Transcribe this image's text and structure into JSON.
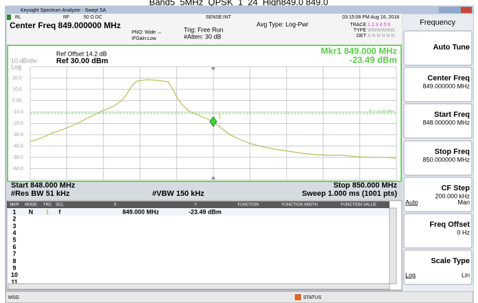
{
  "caption": "Band5_5MHz_QPSK_1_24_High849.0 849.0",
  "window_title": "Keysight Spectrum Analyzer - Swept SA",
  "status_bar": {
    "rl": "RL",
    "rf": "RF",
    "coupling": "50 Ω  DC",
    "sense": "SENSE:INT",
    "datetime": "03:15:06 PM Aug 16, 2018"
  },
  "settings": {
    "center_freq": "Center Freq 849.000000 MHz",
    "pno": "PNO: Wide ↔",
    "ifgain": "IFGain:Low",
    "trig": "Trig: Free Run",
    "atten": "#Atten: 30 dB",
    "avg_type": "Avg Type: Log-Pwr",
    "trace_label": "TRACE",
    "trace_nums": "1 2 3 4 5 6",
    "type_label": "TYPE",
    "type_value": "WWWWWW",
    "det_label": "DET",
    "det_value": "A N N N N N"
  },
  "graph": {
    "ref_offset": "Ref Offset 14.2 dB",
    "ref_level": "Ref 30.00 dBm",
    "scale": "10 dB/div",
    "scale_type": "Log",
    "marker_freq": "Mkr1 849.000 MHz",
    "marker_amp": "-23.49 dBm",
    "marker_id": "1",
    "display_line": "DL1 -13.00 dBm",
    "y_labels": [
      "20.0",
      "10.0",
      "0.00",
      "-10.0",
      "-20.0",
      "-30.0",
      "-40.0",
      "-50.0",
      "-60.0"
    ],
    "start": "Start 848.000 MHz",
    "stop": "Stop 850.000 MHz",
    "res_bw": "#Res BW 51 kHz",
    "vbw": "#VBW 150 kHz",
    "sweep": "Sweep 1.000 ms (1001 pts)"
  },
  "marker_table": {
    "headers": [
      "MKR",
      "MODE",
      "TRC",
      "SCL",
      "X",
      "Y",
      "FUNCTION",
      "FUNCTION WIDTH",
      "FUNCTION VALUE"
    ],
    "rows": [
      [
        "1",
        "N",
        "1",
        "f",
        "849.000 MHz",
        "-23.49 dBm"
      ],
      [
        "2"
      ],
      [
        "3"
      ],
      [
        "4"
      ],
      [
        "5"
      ],
      [
        "6"
      ],
      [
        "7"
      ],
      [
        "8"
      ],
      [
        "9"
      ],
      [
        "10"
      ],
      [
        "11"
      ]
    ]
  },
  "footer": {
    "msg": "MSG",
    "status": "STATUS"
  },
  "menu": {
    "title": "Frequency",
    "buttons": [
      {
        "label": "Auto Tune"
      },
      {
        "label": "Center Freq",
        "value": "849.000000 MHz"
      },
      {
        "label": "Start Freq",
        "value": "848.000000 MHz"
      },
      {
        "label": "Stop Freq",
        "value": "850.000000 MHz"
      },
      {
        "label": "CF Step",
        "value": "200.000 kHz",
        "options": [
          "Auto",
          "Man"
        ]
      },
      {
        "label": "Freq Offset",
        "value": "0 Hz"
      },
      {
        "label": "Scale Type",
        "options": [
          "Log",
          "Lin"
        ]
      }
    ]
  }
}
